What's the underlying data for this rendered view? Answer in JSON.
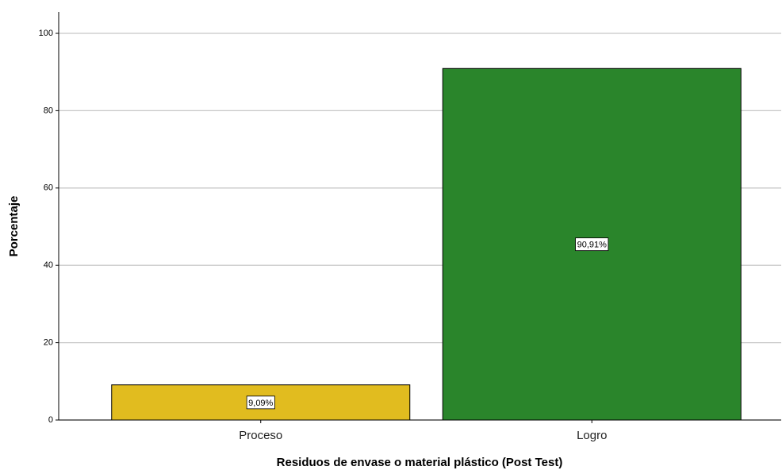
{
  "chart_data": {
    "type": "bar",
    "x_label": "Residuos de envase o material plástico (Post Test)",
    "y_label": "Porcentaje",
    "categories": [
      "Proceso",
      "Logro"
    ],
    "values": [
      9.09,
      90.91
    ],
    "value_labels": [
      "9,09%",
      "90,91%"
    ],
    "colors": [
      "#e1bc1f",
      "#2a852b"
    ],
    "ylim": [
      0,
      100
    ],
    "yticks": [
      0,
      20,
      40,
      60,
      80,
      100
    ],
    "grid": true
  }
}
